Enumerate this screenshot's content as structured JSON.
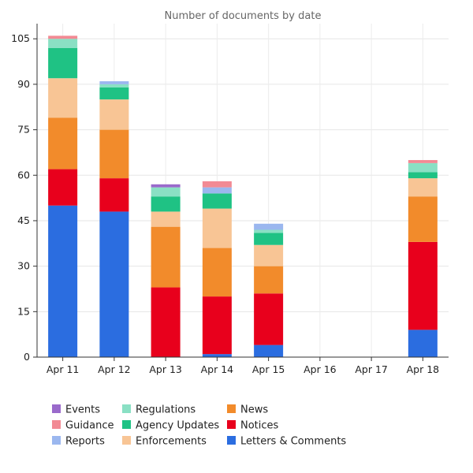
{
  "chart_data": {
    "type": "bar",
    "stacked": true,
    "title": "Number of documents by date",
    "xlabel": "",
    "ylabel": "",
    "categories": [
      "Apr 11",
      "Apr 12",
      "Apr 13",
      "Apr 14",
      "Apr 15",
      "Apr 16",
      "Apr 17",
      "Apr 18"
    ],
    "ylim": [
      0,
      110
    ],
    "yticks": [
      0,
      15,
      30,
      45,
      60,
      75,
      90,
      105
    ],
    "grid": true,
    "legend_position": "bottom",
    "series": [
      {
        "name": "Letters & Comments",
        "color": "#2b6de0",
        "values": [
          50,
          48,
          0,
          1,
          4,
          0,
          0,
          9
        ]
      },
      {
        "name": "Notices",
        "color": "#e8001c",
        "values": [
          12,
          11,
          23,
          19,
          17,
          0,
          0,
          29
        ]
      },
      {
        "name": "News",
        "color": "#f28b2b",
        "values": [
          17,
          16,
          20,
          16,
          9,
          0,
          0,
          15
        ]
      },
      {
        "name": "Enforcements",
        "color": "#f8c595",
        "values": [
          13,
          10,
          5,
          13,
          7,
          0,
          0,
          6
        ]
      },
      {
        "name": "Agency Updates",
        "color": "#1fc284",
        "values": [
          10,
          4,
          5,
          5,
          4,
          0,
          0,
          2
        ]
      },
      {
        "name": "Regulations",
        "color": "#8ae0c4",
        "values": [
          3,
          1,
          3,
          0,
          1,
          0,
          0,
          3
        ]
      },
      {
        "name": "Reports",
        "color": "#9bb7ef",
        "values": [
          0,
          1,
          0,
          2,
          2,
          0,
          0,
          0
        ]
      },
      {
        "name": "Guidance",
        "color": "#f28a94",
        "values": [
          1,
          0,
          0,
          2,
          0,
          0,
          0,
          1
        ]
      },
      {
        "name": "Events",
        "color": "#9a6acb",
        "values": [
          0,
          0,
          1,
          0,
          0,
          0,
          0,
          0
        ]
      }
    ],
    "legend_order": [
      "Events",
      "Guidance",
      "Reports",
      "Regulations",
      "Agency Updates",
      "Enforcements",
      "News",
      "Notices",
      "Letters & Comments"
    ]
  }
}
